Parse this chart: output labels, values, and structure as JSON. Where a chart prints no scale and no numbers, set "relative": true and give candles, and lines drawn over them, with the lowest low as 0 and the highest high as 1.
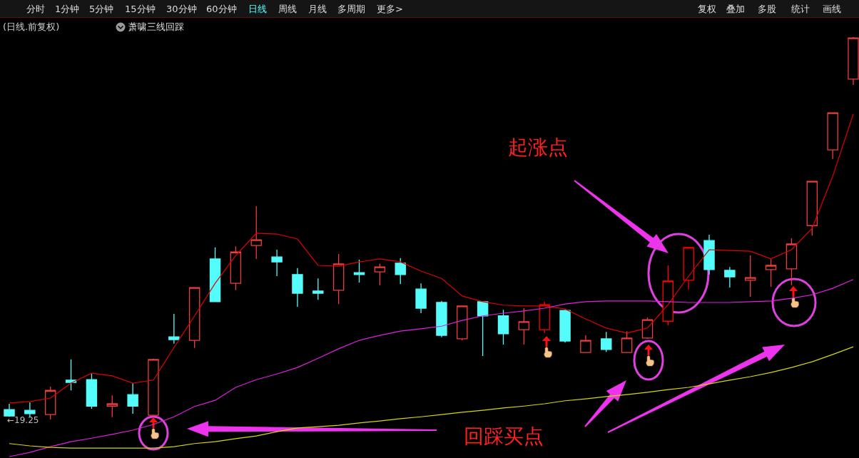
{
  "chart_data": {
    "type": "candlestick",
    "relative": true,
    "categories": [
      null,
      null,
      null,
      null,
      null,
      null,
      null,
      null,
      null,
      null,
      null,
      null,
      null,
      null,
      null,
      null,
      null,
      null,
      null,
      null,
      null,
      null,
      null,
      null,
      null,
      null,
      null,
      null,
      null,
      null,
      null,
      null,
      null,
      null,
      null,
      null,
      null,
      null,
      null,
      null,
      null,
      null
    ],
    "ohlc": [
      [
        0.026,
        0.041,
        0.007,
        0.009
      ],
      [
        0.024,
        0.045,
        0.006,
        0.015
      ],
      [
        0.013,
        0.086,
        0,
        0.076
      ],
      [
        0.103,
        0.157,
        0.076,
        0.097
      ],
      [
        0.104,
        0.121,
        0.028,
        0.035
      ],
      [
        0.035,
        0.063,
        0.006,
        0.041
      ],
      [
        0.065,
        0.095,
        0.015,
        0.035
      ],
      [
        0.011,
        0.159,
        0.009,
        0.157
      ],
      [
        0.216,
        0.276,
        0.198,
        0.209
      ],
      [
        0.207,
        0.345,
        0.187,
        0.345
      ],
      [
        0.42,
        0.45,
        0.308,
        0.308
      ],
      [
        0.356,
        0.453,
        0.338,
        0.438
      ],
      [
        0.455,
        0.558,
        0.42,
        0.47
      ],
      [
        0.425,
        0.444,
        0.375,
        0.412
      ],
      [
        0.379,
        0.396,
        0.295,
        0.33
      ],
      [
        0.336,
        0.369,
        0.313,
        0.33
      ],
      [
        0.338,
        0.433,
        0.302,
        0.407
      ],
      [
        0.384,
        0.418,
        0.358,
        0.379
      ],
      [
        0.386,
        0.407,
        0.351,
        0.399
      ],
      [
        0.409,
        0.422,
        0.354,
        0.379
      ],
      [
        0.341,
        0.356,
        0.278,
        0.291
      ],
      [
        0.306,
        0.31,
        0.215,
        0.22
      ],
      [
        0.211,
        0.297,
        0.207,
        0.297
      ],
      [
        0.308,
        0.308,
        0.166,
        0.271
      ],
      [
        0.271,
        0.287,
        0.196,
        0.224
      ],
      [
        0.235,
        0.291,
        0.196,
        0.256
      ],
      [
        0.235,
        0.308,
        0.226,
        0.3
      ],
      [
        0.285,
        0.287,
        0.201,
        0.205
      ],
      [
        0.175,
        0.22,
        0.175,
        0.207
      ],
      [
        0.211,
        0.229,
        0.177,
        0.183
      ],
      [
        0.175,
        0.231,
        0.175,
        0.213
      ],
      [
        0.213,
        0.267,
        0.211,
        0.261
      ],
      [
        0.257,
        0.403,
        0.246,
        0.362
      ],
      [
        0.364,
        0.45,
        0.34,
        0.45
      ],
      [
        0.468,
        0.483,
        0.379,
        0.392
      ],
      [
        0.39,
        0.399,
        0.345,
        0.373
      ],
      [
        0.364,
        0.429,
        0.321,
        0.371
      ],
      [
        0.392,
        0.42,
        0.347,
        0.403
      ],
      [
        0.394,
        0.474,
        0.351,
        0.459
      ],
      [
        0.507,
        0.623,
        0.481,
        0.623
      ],
      [
        0.705,
        0.802,
        0.681,
        0.802
      ],
      [
        0.89,
        1,
        0.875,
        0.998
      ]
    ],
    "colors": [
      "#54fcfc",
      "#54fcfc",
      "#f03c3c",
      "#54fcfc",
      "#54fcfc",
      "#f03c3c",
      "#54fcfc",
      "#f03c3c",
      "#54fcfc",
      "#f03c3c",
      "#54fcfc",
      "#f03c3c",
      "#f03c3c",
      "#54fcfc",
      "#54fcfc",
      "#54fcfc",
      "#f03c3c",
      "#54fcfc",
      "#f03c3c",
      "#54fcfc",
      "#54fcfc",
      "#54fcfc",
      "#f03c3c",
      "#54fcfc",
      "#54fcfc",
      "#f03c3c",
      "#ff0000",
      "#54fcfc",
      "#f03c3c",
      "#54fcfc",
      "#f03c3c",
      "#f03c3c",
      "#ff0000",
      "#ff0000",
      "#54fcfc",
      "#54fcfc",
      "#f03c3c",
      "#f03c3c",
      "#f03c3c",
      "#f03c3c",
      "#f03c3c",
      "#f03c3c"
    ],
    "series": [
      {
        "type": "line",
        "color": "#e00000",
        "values": [
          0.043,
          0.047,
          0.056,
          0.095,
          0.121,
          0.114,
          0.095,
          0.103,
          0.188,
          0.271,
          0.356,
          0.429,
          0.487,
          0.485,
          0.472,
          0.403,
          0.401,
          0.412,
          0.42,
          0.412,
          0.388,
          0.369,
          0.323,
          0.308,
          0.299,
          0.297,
          0.297,
          0.289,
          0.263,
          0.239,
          0.226,
          0.239,
          0.3,
          0.375,
          0.444,
          0.442,
          0.44,
          0.42,
          0.444,
          0.5,
          0.636,
          0.799
        ]
      },
      {
        "type": "line",
        "color": "#e020e0",
        "values": [
          -0.097,
          -0.086,
          -0.071,
          -0.058,
          -0.049,
          -0.039,
          -0.028,
          -0.013,
          0.007,
          0.034,
          0.05,
          0.084,
          0.104,
          0.119,
          0.136,
          0.16,
          0.185,
          0.207,
          0.22,
          0.231,
          0.237,
          0.244,
          0.259,
          0.271,
          0.278,
          0.284,
          0.291,
          0.302,
          0.308,
          0.31,
          0.31,
          0.31,
          0.308,
          0.306,
          0.306,
          0.306,
          0.308,
          0.31,
          0.317,
          0.326,
          0.343,
          0.366
        ]
      },
      {
        "type": "line",
        "color": "#d8d800",
        "values": [
          -0.063,
          -0.069,
          -0.073,
          -0.075,
          -0.075,
          -0.075,
          -0.075,
          -0.075,
          -0.071,
          -0.063,
          -0.058,
          -0.05,
          -0.043,
          -0.032,
          -0.022,
          -0.019,
          -0.015,
          -0.009,
          -0.004,
          0.002,
          0.007,
          0.013,
          0.019,
          0.024,
          0.03,
          0.035,
          0.041,
          0.049,
          0.054,
          0.06,
          0.065,
          0.071,
          0.078,
          0.084,
          0.093,
          0.103,
          0.112,
          0.123,
          0.136,
          0.151,
          0.17,
          0.19
        ]
      }
    ],
    "annotations": [
      "分时",
      "1分钟",
      "5分钟",
      "15分钟",
      "30分钟",
      "60分钟",
      "日线",
      "周线",
      "月线",
      "多周期",
      "更多>",
      "复权",
      "叠加",
      "多股",
      "统计",
      "画线",
      "(日线.前复权)",
      "萧啸三线回踩",
      "起涨点",
      "回踩买点",
      "←19.25"
    ]
  }
}
